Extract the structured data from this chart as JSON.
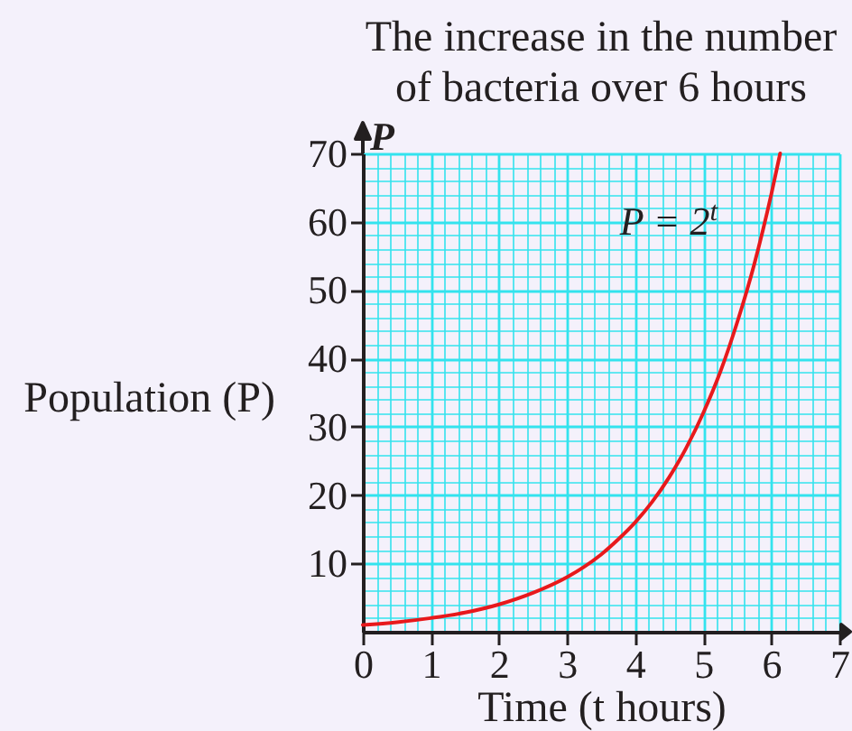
{
  "chart_data": {
    "type": "line",
    "title": "The increase in the number\nof bacteria over 6 hours",
    "xlabel": "Time (t hours)",
    "ylabel": "Population (P)",
    "x": [
      0,
      0.5,
      1,
      1.5,
      2,
      2.5,
      3,
      3.25,
      3.5,
      3.75,
      4,
      4.25,
      4.5,
      4.75,
      5,
      5.25,
      5.5,
      5.75,
      6,
      6.13
    ],
    "series": [
      {
        "color": "#e8191c",
        "values": [
          1,
          1.4,
          2,
          2.8,
          4,
          5.7,
          8,
          9.5,
          11.3,
          13.5,
          16,
          19,
          22.6,
          26.9,
          32,
          38,
          45.3,
          53.8,
          64,
          70
        ]
      }
    ],
    "xlim": [
      0,
      7
    ],
    "ylim": [
      0,
      70
    ],
    "xticks": [
      0,
      {
        "value": 0.2,
        "label": null
      },
      {
        "value": 0.4,
        "label": null
      },
      {
        "value": 0.6,
        "label": null
      },
      {
        "value": 0.8,
        "label": null
      },
      1,
      {
        "value": 1.2,
        "label": null
      },
      {
        "value": 1.4,
        "label": null
      },
      {
        "value": 1.6,
        "label": null
      },
      {
        "value": 1.8,
        "label": null
      },
      2,
      {
        "value": 2.2,
        "label": null
      },
      {
        "value": 2.4,
        "label": null
      },
      {
        "value": 2.6,
        "label": null
      },
      {
        "value": 2.8,
        "label": null
      },
      3,
      {
        "value": 3.2,
        "label": null
      },
      {
        "value": 3.4,
        "label": null
      },
      {
        "value": 3.6,
        "label": null
      },
      {
        "value": 3.8,
        "label": null
      },
      4,
      {
        "value": 4.2,
        "label": null
      },
      {
        "value": 4.4,
        "label": null
      },
      {
        "value": 4.6,
        "label": null
      },
      {
        "value": 4.8,
        "label": null
      },
      5,
      {
        "value": 5.2,
        "label": null
      },
      {
        "value": 5.4,
        "label": null
      },
      {
        "value": 5.6,
        "label": null
      },
      {
        "value": 5.8,
        "label": null
      },
      6,
      {
        "value": 6.2,
        "label": null
      },
      {
        "value": 6.4,
        "label": null
      },
      {
        "value": 6.6,
        "label": null
      },
      {
        "value": 6.8,
        "label": null
      },
      7
    ],
    "yticks": [
      {
        "value": 2,
        "label": null
      },
      {
        "value": 4,
        "label": null
      },
      {
        "value": 6,
        "label": null
      },
      {
        "value": 8,
        "label": null
      },
      10,
      {
        "value": 12,
        "label": null
      },
      {
        "value": 14,
        "label": null
      },
      {
        "value": 16,
        "label": null
      },
      {
        "value": 18,
        "label": null
      },
      20,
      {
        "value": 22,
        "label": null
      },
      {
        "value": 24,
        "label": null
      },
      {
        "value": 26,
        "label": null
      },
      {
        "value": 28,
        "label": null
      },
      30,
      {
        "value": 32,
        "label": null
      },
      {
        "value": 34,
        "label": null
      },
      {
        "value": 36,
        "label": null
      },
      {
        "value": 38,
        "label": null
      },
      40,
      {
        "value": 42,
        "label": null
      },
      {
        "value": 44,
        "label": null
      },
      {
        "value": 46,
        "label": null
      },
      {
        "value": 48,
        "label": null
      },
      50,
      {
        "value": 52,
        "label": null
      },
      {
        "value": 54,
        "label": null
      },
      {
        "value": 56,
        "label": null
      },
      {
        "value": 58,
        "label": null
      },
      60,
      {
        "value": 62,
        "label": null
      },
      {
        "value": 64,
        "label": null
      },
      {
        "value": 66,
        "label": null
      },
      {
        "value": 68,
        "label": null
      },
      70
    ],
    "grid": true,
    "annotations": [
      "P",
      {
        "text": "P = 2$^{t}$",
        "x": 5.9,
        "y": 60
      }
    ]
  }
}
